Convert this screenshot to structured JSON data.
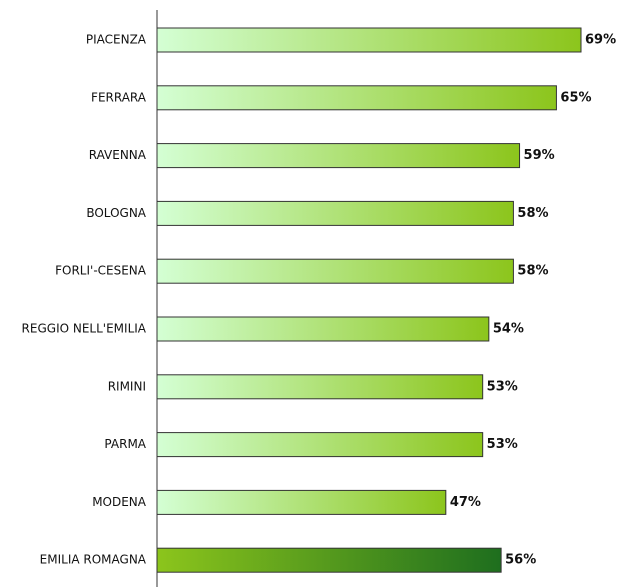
{
  "chart_data": {
    "type": "barh",
    "categories": [
      "PIACENZA",
      "FERRARA",
      "RAVENNA",
      "BOLOGNA",
      "FORLI'-CESENA",
      "REGGIO NELL'EMILIA",
      "RIMINI",
      "PARMA",
      "MODENA",
      "EMILIA ROMAGNA"
    ],
    "values": [
      69,
      65,
      59,
      58,
      58,
      54,
      53,
      53,
      47,
      56
    ],
    "value_labels": [
      "69%",
      "65%",
      "59%",
      "58%",
      "58%",
      "54%",
      "53%",
      "53%",
      "47%",
      "56%"
    ],
    "colors": [
      "#d4ffd4",
      "#8cc51c"
    ],
    "total_colors": [
      "#8cc51c",
      "#1e6e1e"
    ]
  }
}
